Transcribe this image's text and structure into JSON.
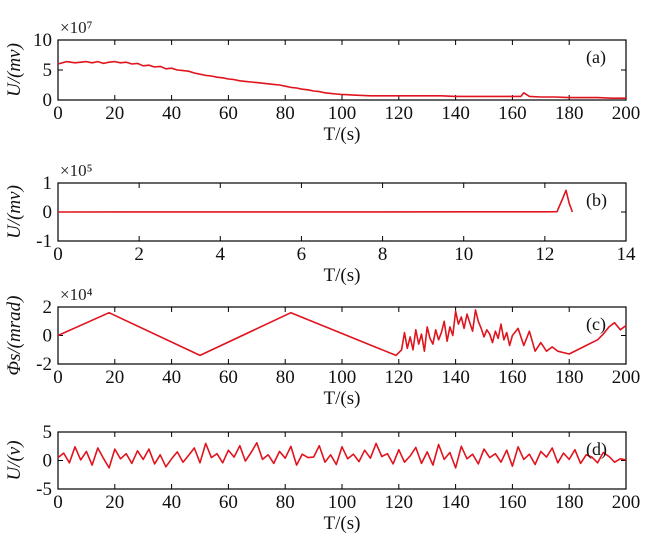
{
  "chart_data": [
    {
      "type": "line",
      "panel": "(a)",
      "ylabel": "U/(mv)",
      "xlabel": "T/(s)",
      "multiplier": "×10⁷",
      "xlim": [
        0,
        200
      ],
      "ylim": [
        0,
        10
      ],
      "xticks": [
        0,
        20,
        40,
        60,
        80,
        100,
        120,
        140,
        160,
        180,
        200
      ],
      "yticks": [
        0,
        5,
        10
      ],
      "color": "#e0141e",
      "x": [
        0,
        3,
        6,
        8,
        10,
        12,
        14,
        16,
        18,
        20,
        22,
        24,
        26,
        28,
        30,
        32,
        34,
        36,
        38,
        40,
        42,
        44,
        46,
        48,
        50,
        52,
        54,
        56,
        58,
        60,
        62,
        64,
        66,
        68,
        70,
        72,
        74,
        76,
        78,
        80,
        82,
        84,
        86,
        88,
        90,
        92,
        94,
        96,
        98,
        100,
        101,
        105,
        110,
        115,
        120,
        125,
        130,
        135,
        140,
        145,
        150,
        155,
        160,
        163,
        164,
        166,
        170,
        175,
        180,
        185,
        190,
        195,
        200
      ],
      "y": [
        6.0,
        6.4,
        6.2,
        6.3,
        6.4,
        6.2,
        6.4,
        6.1,
        6.3,
        6.4,
        6.2,
        6.3,
        6.0,
        6.1,
        5.7,
        5.8,
        5.5,
        5.6,
        5.2,
        5.3,
        5.0,
        4.9,
        4.8,
        4.5,
        4.3,
        4.1,
        4.0,
        3.8,
        3.7,
        3.5,
        3.4,
        3.2,
        3.1,
        3.0,
        2.9,
        2.8,
        2.7,
        2.6,
        2.5,
        2.3,
        2.1,
        2.0,
        1.8,
        1.7,
        1.5,
        1.4,
        1.2,
        1.1,
        1.0,
        0.9,
        0.9,
        0.8,
        0.7,
        0.7,
        0.7,
        0.7,
        0.7,
        0.7,
        0.6,
        0.6,
        0.6,
        0.6,
        0.6,
        0.6,
        1.2,
        0.6,
        0.5,
        0.5,
        0.4,
        0.4,
        0.4,
        0.3,
        0.3
      ]
    },
    {
      "type": "line",
      "panel": "(b)",
      "ylabel": "U/(mv)",
      "xlabel": "T/(s)",
      "multiplier": "×10⁵",
      "xlim": [
        0,
        14
      ],
      "ylim": [
        -1,
        1
      ],
      "xticks": [
        0,
        2,
        4,
        6,
        8,
        10,
        12,
        14
      ],
      "yticks": [
        -1,
        0,
        1
      ],
      "color": "#e0141e",
      "x": [
        0,
        2,
        4,
        6,
        8,
        10,
        12,
        12.3,
        12.45,
        12.52,
        12.6,
        12.68
      ],
      "y": [
        0,
        0.002,
        0.003,
        0.004,
        0.005,
        0.006,
        0.007,
        0.01,
        0.5,
        0.75,
        0.3,
        0.0
      ]
    },
    {
      "type": "line",
      "panel": "(c)",
      "ylabel": "Φs/(mrad)",
      "xlabel": "T/(s)",
      "multiplier": "×10⁴",
      "xlim": [
        0,
        200
      ],
      "ylim": [
        -2,
        2
      ],
      "xticks": [
        0,
        20,
        40,
        60,
        80,
        100,
        120,
        140,
        160,
        180,
        200
      ],
      "yticks": [
        -2,
        0,
        2
      ],
      "color": "#e0141e",
      "x": [
        0,
        18,
        50,
        82,
        119,
        121,
        122,
        123,
        124,
        125,
        126,
        127,
        128,
        129,
        130,
        131,
        132,
        133,
        134,
        135,
        136,
        137,
        138,
        139,
        140,
        141,
        142,
        143,
        144,
        145,
        146,
        147,
        148,
        149,
        150,
        151,
        152,
        153,
        154,
        155,
        156,
        157,
        158,
        159,
        160,
        162,
        164,
        166,
        168,
        170,
        172,
        174,
        176,
        178,
        180,
        185,
        190,
        192,
        194,
        196,
        198,
        200
      ],
      "y": [
        0,
        1.6,
        -1.4,
        1.6,
        -1.4,
        -1.0,
        0.2,
        -0.9,
        -0.1,
        -1.0,
        0.4,
        -0.6,
        0.1,
        -1.1,
        0.6,
        -0.2,
        -0.6,
        0.4,
        -0.3,
        0.2,
        1.0,
        -0.4,
        0.6,
        0.0,
        1.7,
        0.8,
        1.3,
        0.5,
        1.5,
        0.9,
        0.3,
        1.8,
        1.0,
        0.5,
        -0.1,
        0.4,
        0.1,
        -0.5,
        0.3,
        -0.2,
        0.8,
        -0.3,
        0.2,
        -0.7,
        0.0,
        0.5,
        -0.7,
        0.3,
        -1.1,
        -0.5,
        -1.1,
        -0.8,
        -1.1,
        -1.2,
        -1.3,
        -0.8,
        -0.3,
        0.1,
        0.6,
        0.9,
        0.4,
        0.7
      ]
    },
    {
      "type": "line",
      "panel": "(d)",
      "ylabel": "U/(v)",
      "xlabel": "T/(s)",
      "multiplier": "",
      "xlim": [
        0,
        200
      ],
      "ylim": [
        -5,
        5
      ],
      "xticks": [
        0,
        20,
        40,
        60,
        80,
        100,
        120,
        140,
        160,
        180,
        200
      ],
      "yticks": [
        -5,
        0,
        5
      ],
      "color": "#e0141e",
      "x": [
        0,
        2,
        4,
        6,
        8,
        10,
        12,
        14,
        16,
        18,
        20,
        22,
        24,
        26,
        28,
        30,
        32,
        34,
        36,
        38,
        40,
        42,
        44,
        46,
        48,
        50,
        52,
        54,
        56,
        58,
        60,
        62,
        64,
        66,
        68,
        70,
        72,
        74,
        76,
        78,
        80,
        82,
        84,
        86,
        88,
        90,
        92,
        94,
        96,
        98,
        100,
        102,
        104,
        106,
        108,
        110,
        112,
        114,
        116,
        118,
        120,
        122,
        124,
        126,
        128,
        130,
        132,
        134,
        136,
        138,
        140,
        142,
        144,
        146,
        148,
        150,
        152,
        154,
        156,
        158,
        160,
        162,
        164,
        166,
        168,
        170,
        172,
        174,
        176,
        178,
        180,
        182,
        184,
        186,
        188,
        190,
        192,
        194,
        196,
        198,
        200
      ],
      "y": [
        0.5,
        1.3,
        -0.4,
        2.4,
        0.1,
        1.6,
        -0.8,
        2.2,
        0.4,
        -1.3,
        2.0,
        0.3,
        1.2,
        -0.5,
        1.7,
        0.2,
        2.0,
        -0.6,
        1.0,
        -1.1,
        0.3,
        1.5,
        -0.3,
        0.9,
        2.2,
        -0.4,
        3.0,
        0.5,
        1.2,
        -0.4,
        1.8,
        0.6,
        2.6,
        -0.1,
        1.4,
        3.1,
        0.2,
        1.0,
        -0.5,
        1.6,
        0.4,
        2.5,
        -0.8,
        1.1,
        0.5,
        0.6,
        2.6,
        -0.3,
        1.0,
        -0.7,
        2.4,
        0.3,
        1.1,
        -0.2,
        1.8,
        0.4,
        3.0,
        0.7,
        1.2,
        -0.6,
        1.9,
        -0.3,
        0.8,
        2.3,
        -0.5,
        1.5,
        -0.8,
        2.8,
        0.2,
        1.4,
        -1.3,
        2.5,
        0.3,
        1.1,
        -0.6,
        2.0,
        0.5,
        1.2,
        -0.3,
        1.8,
        -1.0,
        2.4,
        0.2,
        1.1,
        -0.7,
        1.6,
        0.6,
        2.2,
        -0.4,
        1.3,
        0.2,
        1.9,
        -0.5,
        1.0,
        0.6,
        -0.4,
        1.4,
        0.7,
        -0.3,
        0.3,
        0.1
      ]
    }
  ]
}
